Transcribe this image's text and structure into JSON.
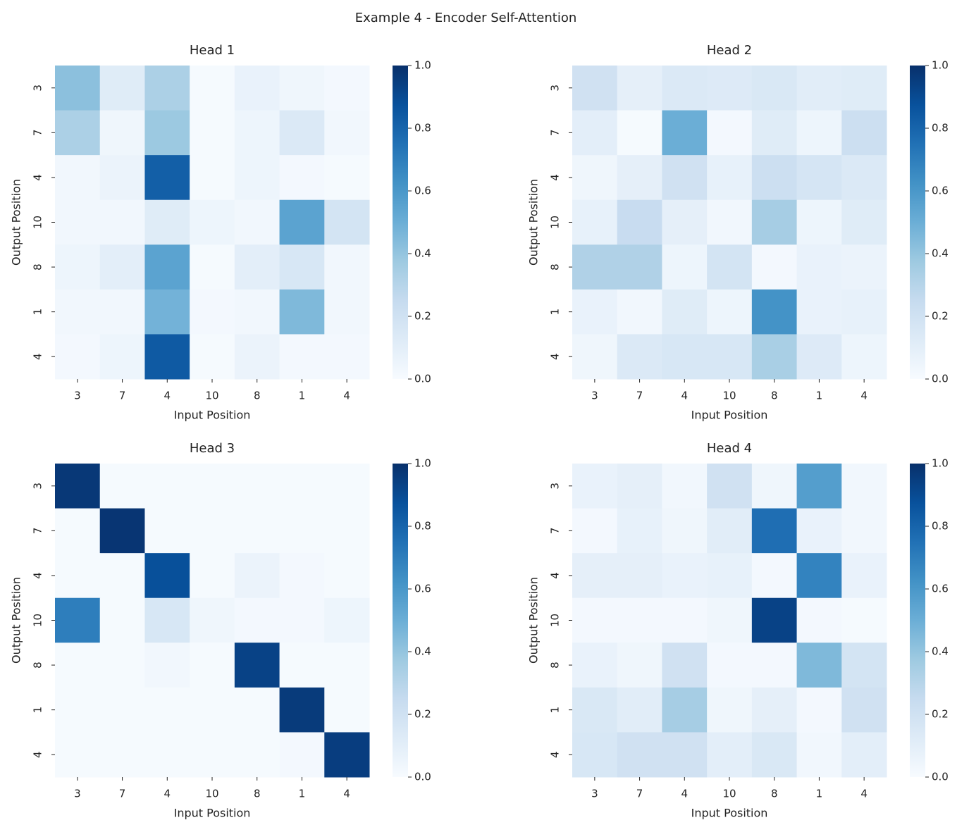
{
  "title": "Example 4 - Encoder Self-Attention",
  "chart_data": [
    {
      "type": "heatmap",
      "title": "Head 1",
      "x_label": "Input Position",
      "y_label": "Output Position",
      "colormap": "Blues",
      "x_categories": [
        "3",
        "7",
        "4",
        "10",
        "8",
        "1",
        "4"
      ],
      "y_categories": [
        "3",
        "7",
        "4",
        "10",
        "8",
        "1",
        "4"
      ],
      "values": [
        [
          0.42,
          0.12,
          0.33,
          0.01,
          0.07,
          0.04,
          0.02
        ],
        [
          0.33,
          0.04,
          0.38,
          0.01,
          0.05,
          0.14,
          0.03
        ],
        [
          0.03,
          0.06,
          0.82,
          0.01,
          0.05,
          0.02,
          0.01
        ],
        [
          0.03,
          0.03,
          0.12,
          0.05,
          0.03,
          0.55,
          0.18
        ],
        [
          0.05,
          0.1,
          0.55,
          0.01,
          0.1,
          0.16,
          0.03
        ],
        [
          0.03,
          0.03,
          0.48,
          0.02,
          0.03,
          0.45,
          0.03
        ],
        [
          0.02,
          0.05,
          0.84,
          0.01,
          0.06,
          0.02,
          0.02
        ]
      ],
      "clim": [
        0,
        1
      ],
      "cticks": [
        {
          "value": 0,
          "label": "0.0"
        },
        0.2,
        0.4,
        0.6,
        0.8,
        {
          "value": 1,
          "label": "1.0"
        }
      ]
    },
    {
      "type": "heatmap",
      "title": "Head 2",
      "x_label": "Input Position",
      "y_label": "Output Position",
      "colormap": "Blues",
      "x_categories": [
        "3",
        "7",
        "4",
        "10",
        "8",
        "1",
        "4"
      ],
      "y_categories": [
        "3",
        "7",
        "4",
        "10",
        "8",
        "1",
        "4"
      ],
      "values": [
        [
          0.2,
          0.09,
          0.14,
          0.13,
          0.15,
          0.11,
          0.12
        ],
        [
          0.1,
          0.01,
          0.5,
          0.02,
          0.12,
          0.05,
          0.22
        ],
        [
          0.04,
          0.09,
          0.2,
          0.08,
          0.22,
          0.17,
          0.14
        ],
        [
          0.08,
          0.24,
          0.09,
          0.03,
          0.35,
          0.05,
          0.12
        ],
        [
          0.32,
          0.32,
          0.05,
          0.18,
          0.02,
          0.07,
          0.06
        ],
        [
          0.07,
          0.03,
          0.12,
          0.05,
          0.62,
          0.07,
          0.08
        ],
        [
          0.04,
          0.14,
          0.16,
          0.16,
          0.34,
          0.13,
          0.05
        ]
      ],
      "clim": [
        0,
        1
      ],
      "cticks": [
        {
          "value": 0,
          "label": "0.0"
        },
        0.2,
        0.4,
        0.6,
        0.8,
        {
          "value": 1,
          "label": "1.0"
        }
      ]
    },
    {
      "type": "heatmap",
      "title": "Head 3",
      "x_label": "Input Position",
      "y_label": "Output Position",
      "colormap": "Blues",
      "x_categories": [
        "3",
        "7",
        "4",
        "10",
        "8",
        "1",
        "4"
      ],
      "y_categories": [
        "3",
        "7",
        "4",
        "10",
        "8",
        "1",
        "4"
      ],
      "values": [
        [
          0.97,
          0.01,
          0.01,
          0.01,
          0.01,
          0.01,
          0.01
        ],
        [
          0.01,
          0.98,
          0.01,
          0.01,
          0.01,
          0.01,
          0.01
        ],
        [
          0.01,
          0.01,
          0.88,
          0.01,
          0.06,
          0.02,
          0.01
        ],
        [
          0.7,
          0.01,
          0.16,
          0.04,
          0.02,
          0.02,
          0.05
        ],
        [
          0.01,
          0.01,
          0.03,
          0.01,
          0.93,
          0.01,
          0.01
        ],
        [
          0.01,
          0.01,
          0.01,
          0.01,
          0.01,
          0.96,
          0.01
        ],
        [
          0.01,
          0.01,
          0.01,
          0.01,
          0.01,
          0.02,
          0.95
        ]
      ],
      "clim": [
        0,
        1
      ],
      "cticks": [
        {
          "value": 0,
          "label": "0.0"
        },
        0.2,
        0.4,
        0.6,
        0.8,
        {
          "value": 1,
          "label": "1.0"
        }
      ]
    },
    {
      "type": "heatmap",
      "title": "Head 4",
      "x_label": "Input Position",
      "y_label": "Output Position",
      "colormap": "Blues",
      "x_categories": [
        "3",
        "7",
        "4",
        "10",
        "8",
        "1",
        "4"
      ],
      "y_categories": [
        "3",
        "7",
        "4",
        "10",
        "8",
        "1",
        "4"
      ],
      "values": [
        [
          0.07,
          0.09,
          0.03,
          0.2,
          0.04,
          0.57,
          0.03
        ],
        [
          0.02,
          0.08,
          0.04,
          0.11,
          0.76,
          0.07,
          0.03
        ],
        [
          0.09,
          0.09,
          0.07,
          0.08,
          0.02,
          0.68,
          0.07
        ],
        [
          0.02,
          0.02,
          0.02,
          0.04,
          0.93,
          0.02,
          0.01
        ],
        [
          0.07,
          0.04,
          0.2,
          0.02,
          0.02,
          0.45,
          0.18
        ],
        [
          0.15,
          0.11,
          0.35,
          0.04,
          0.09,
          0.02,
          0.2
        ],
        [
          0.16,
          0.2,
          0.2,
          0.1,
          0.15,
          0.03,
          0.1
        ]
      ],
      "clim": [
        0,
        1
      ],
      "cticks": [
        {
          "value": 0,
          "label": "0.0"
        },
        0.2,
        0.4,
        0.6,
        0.8,
        {
          "value": 1,
          "label": "1.0"
        }
      ]
    }
  ]
}
